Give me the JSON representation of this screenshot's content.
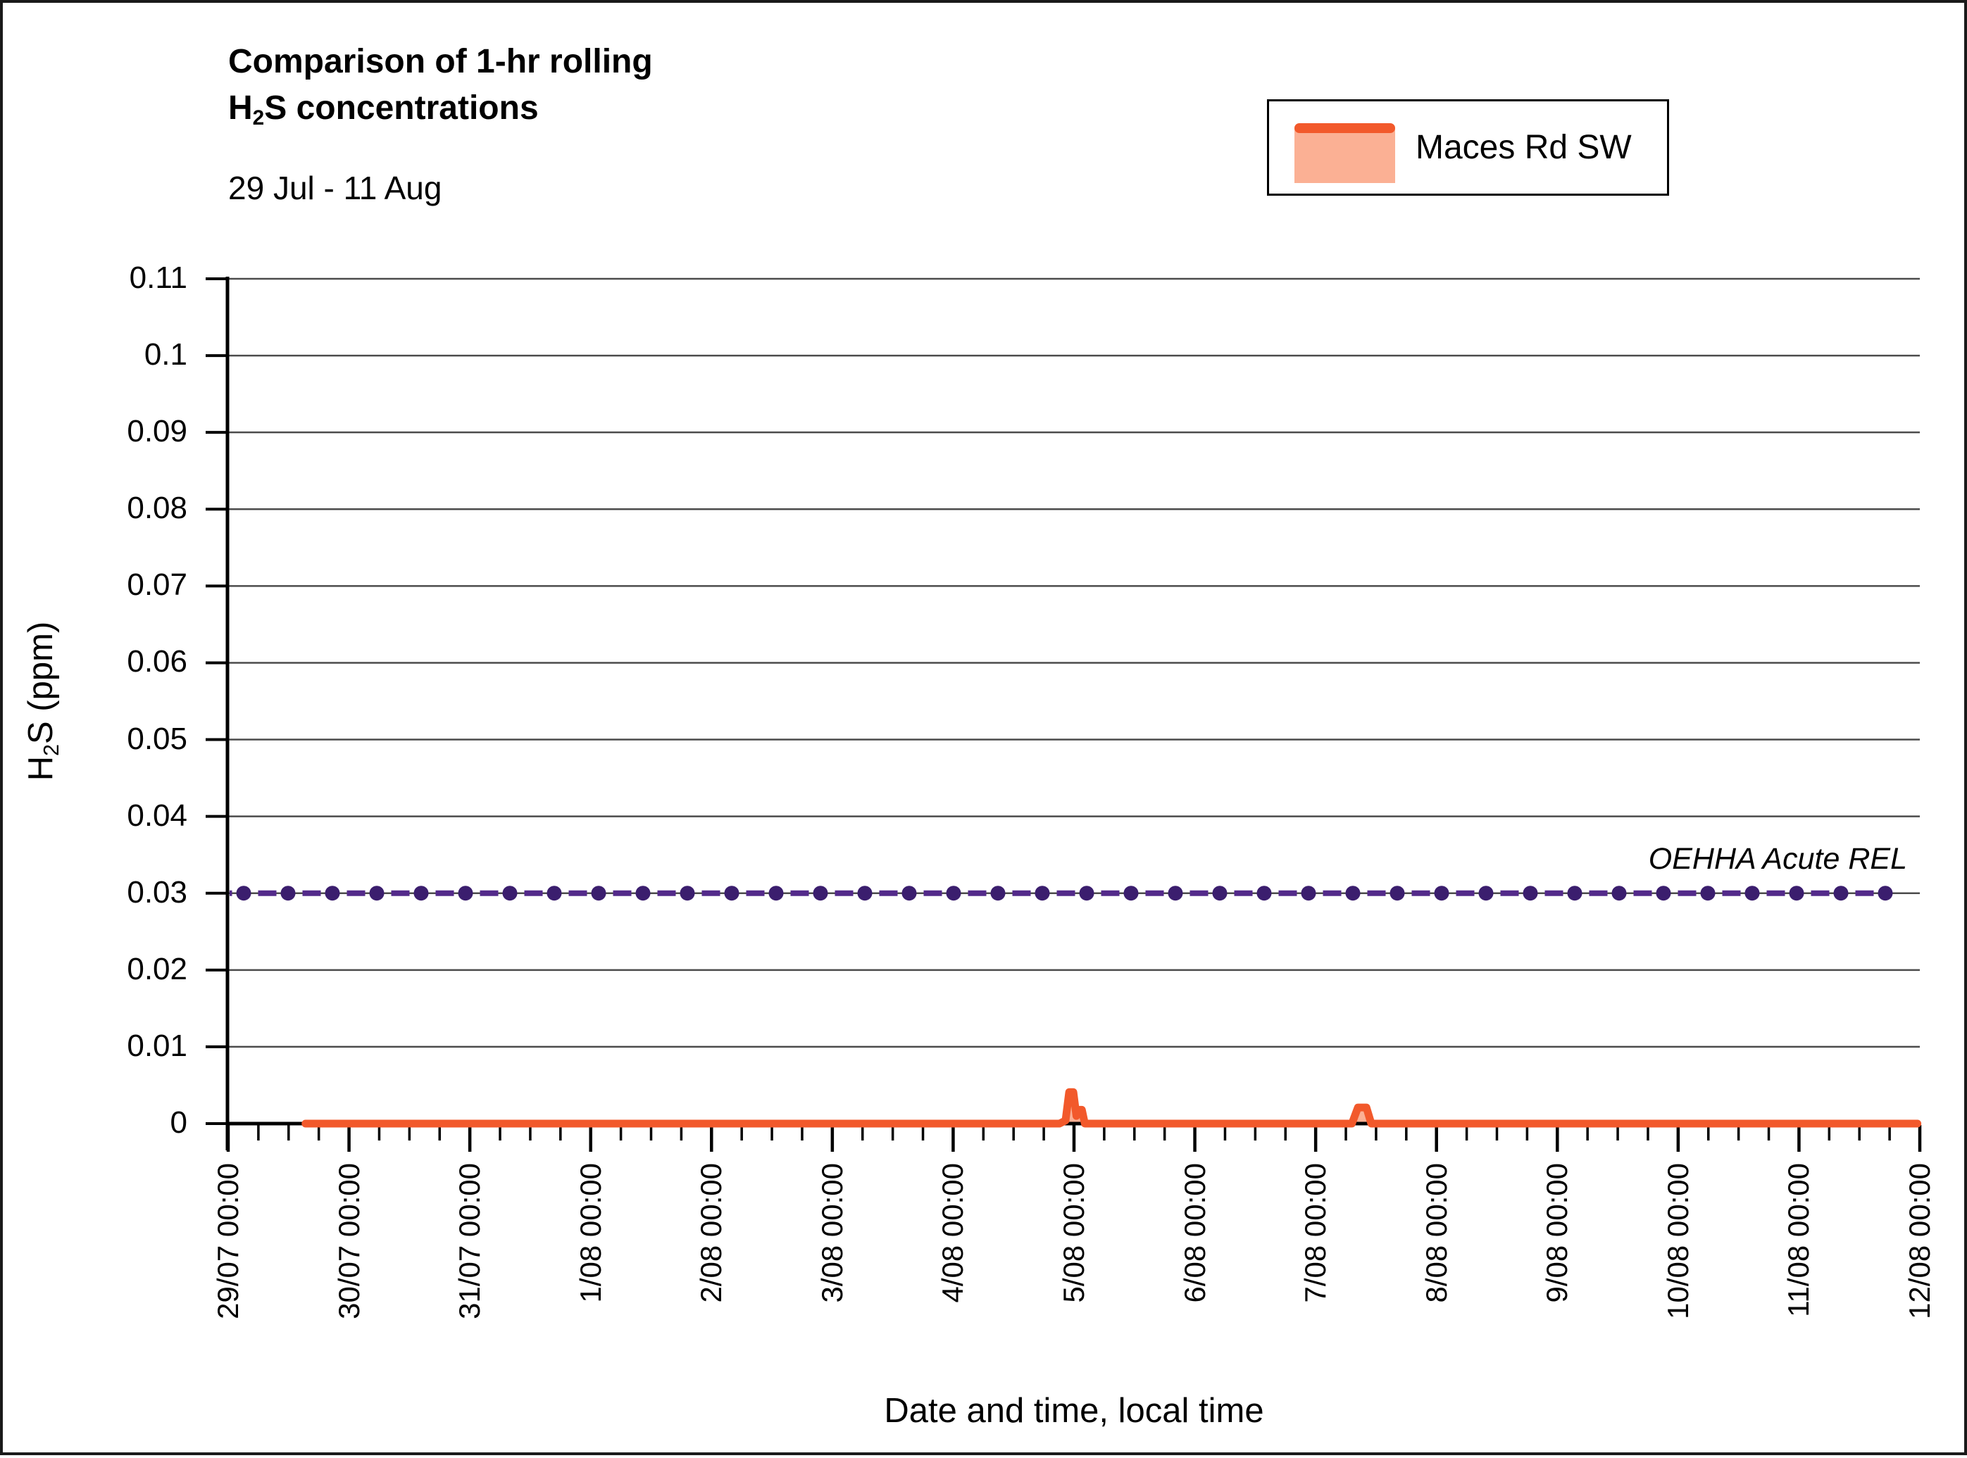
{
  "title": {
    "line1": "Comparison of 1-hr rolling",
    "formula_base": "H",
    "formula_sub": "2",
    "line2_rest": "S concentrations",
    "subtitle": "29 Jul - 11 Aug"
  },
  "legend": {
    "series_label": "Maces Rd SW",
    "line_color": "#F2592B",
    "fill_color": "#FBB094"
  },
  "annotation": {
    "rel_label": "OEHHA Acute REL"
  },
  "axes": {
    "x_title": "Date and time, local time",
    "y_title_base": "H",
    "y_title_sub": "2",
    "y_title_rest": "S (ppm)"
  },
  "chart_data": {
    "type": "line",
    "title": "Comparison of 1-hr rolling H2S concentrations",
    "subtitle": "29 Jul - 11 Aug",
    "xlabel": "Date and time, local time",
    "ylabel": "H2S (ppm)",
    "grid": "horizontal",
    "legend_position": "top-right",
    "x_axis": {
      "range_days": [
        0,
        14
      ],
      "major_tick_every_days": 1,
      "minor_tick_every_hours": 6,
      "tick_labels": [
        "29/07 00:00",
        "30/07 00:00",
        "31/07 00:00",
        "1/08 00:00",
        "2/08 00:00",
        "3/08 00:00",
        "4/08 00:00",
        "5/08 00:00",
        "6/08 00:00",
        "7/08 00:00",
        "8/08 00:00",
        "9/08 00:00",
        "10/08 00:00",
        "11/08 00:00",
        "12/08 00:00"
      ]
    },
    "y_axis": {
      "lim": [
        0,
        0.11
      ],
      "tick_values": [
        0,
        0.01,
        0.02,
        0.03,
        0.04,
        0.05,
        0.06,
        0.07,
        0.08,
        0.09,
        0.1,
        0.11
      ],
      "tick_labels": [
        "0",
        "0.01",
        "0.02",
        "0.03",
        "0.04",
        "0.05",
        "0.06",
        "0.07",
        "0.08",
        "0.09",
        "0.1",
        "0.11"
      ]
    },
    "series": [
      {
        "name": "Maces Rd SW",
        "line_color": "#F2592B",
        "fill_color": "#FBB094",
        "points_day_ppm": [
          [
            0.64,
            0
          ],
          [
            6.88,
            0
          ],
          [
            6.93,
            0.0004
          ],
          [
            6.96,
            0.0041
          ],
          [
            6.995,
            0.0041
          ],
          [
            7.02,
            0.001
          ],
          [
            7.045,
            0.0018
          ],
          [
            7.065,
            0.0018
          ],
          [
            7.09,
            0
          ],
          [
            9.3,
            0
          ],
          [
            9.35,
            0.0021
          ],
          [
            9.42,
            0.0021
          ],
          [
            9.46,
            0
          ],
          [
            13.98,
            0
          ]
        ]
      }
    ],
    "reference_line": {
      "label": "OEHHA Acute REL",
      "value": 0.03,
      "dot_color": "#3B1E6E",
      "dash_color": "#532A8A",
      "gridline_color": "#4B4B4B"
    }
  }
}
